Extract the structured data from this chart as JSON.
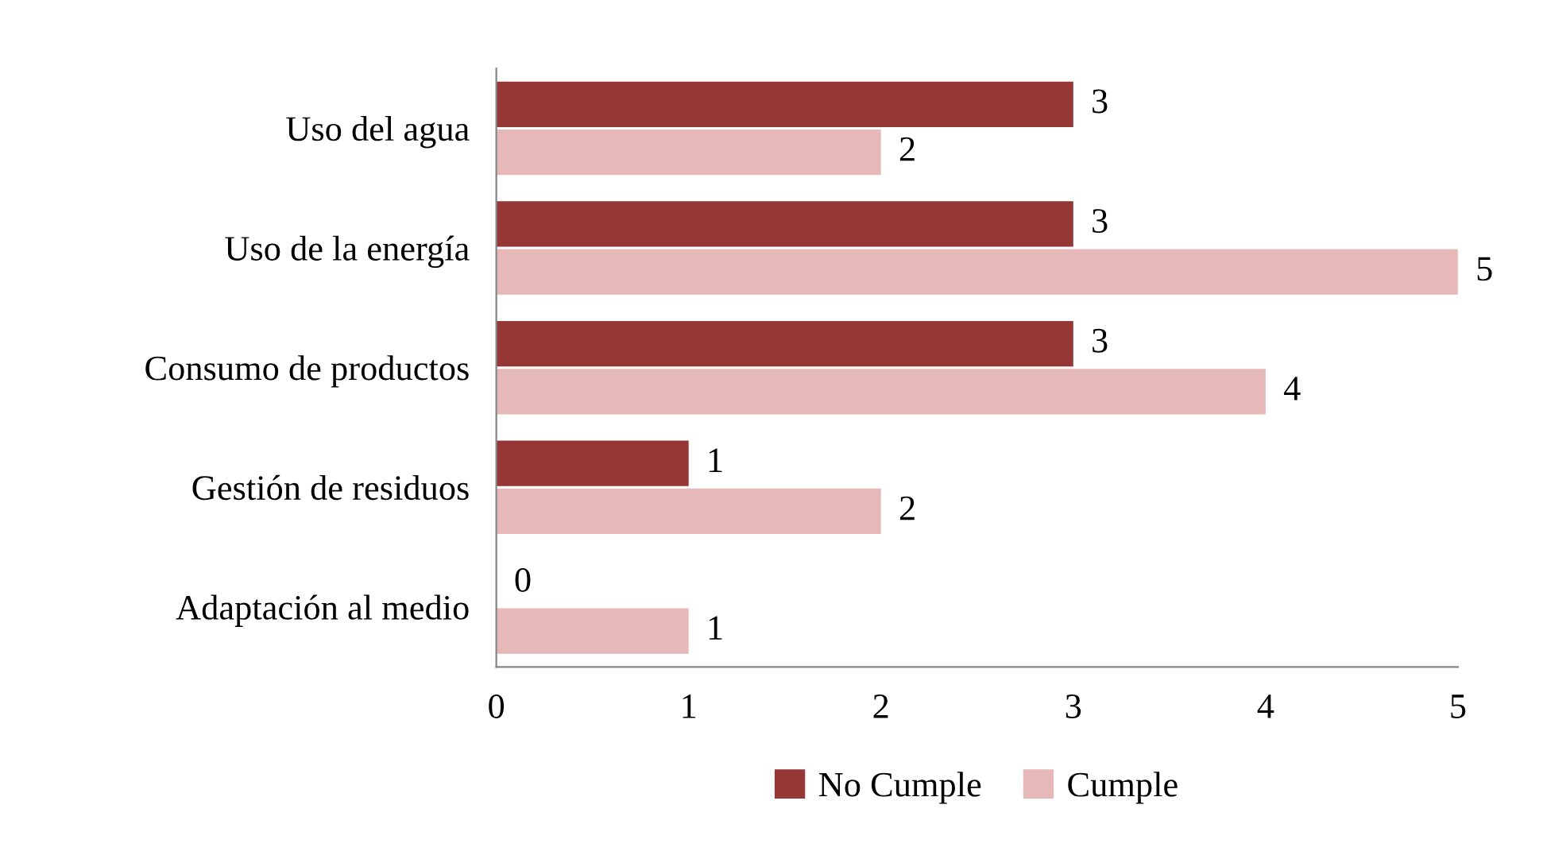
{
  "chart_data": {
    "type": "bar",
    "orientation": "horizontal",
    "categories": [
      "Uso del agua",
      "Uso de la energía",
      "Consumo de productos",
      "Gestión de residuos",
      "Adaptación al medio"
    ],
    "series": [
      {
        "name": "No Cumple",
        "color": "#953735",
        "values": [
          3,
          3,
          3,
          1,
          0
        ]
      },
      {
        "name": "Cumple",
        "color": "#e6b9b8",
        "values": [
          2,
          5,
          4,
          2,
          1
        ]
      }
    ],
    "xlim": [
      0,
      5
    ],
    "xticks": [
      0,
      1,
      2,
      3,
      4,
      5
    ],
    "grid": false,
    "legend": "bottom",
    "data_labels": true
  }
}
